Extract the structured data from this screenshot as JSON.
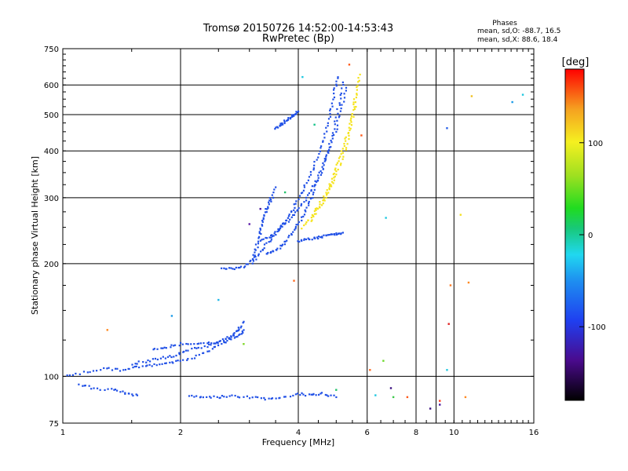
{
  "chart_data": {
    "type": "scatter",
    "title": "Tromsø 20150726 14:52:00-14:53:43",
    "subtitle": "RwPretec (Bp)",
    "xlabel": "Frequency [MHz]",
    "ylabel": "Stationary phase Virtual Height [km]",
    "x_scale": "log",
    "y_scale": "log",
    "xlim": [
      1,
      16
    ],
    "ylim": [
      75,
      750
    ],
    "x_ticks": [
      "1",
      "2",
      "4",
      "6",
      "8",
      "10",
      "16"
    ],
    "x_tick_values": [
      1,
      2,
      4,
      6,
      8,
      10,
      16
    ],
    "x_grid": [
      1,
      2,
      4,
      6,
      8,
      9,
      10,
      16
    ],
    "y_ticks": [
      "75",
      "100",
      "200",
      "300",
      "400",
      "500",
      "600",
      "750"
    ],
    "y_tick_values": [
      75,
      100,
      200,
      300,
      400,
      500,
      600,
      750
    ],
    "grid": true,
    "stats": {
      "heading": "Phases",
      "o_line": "mean, sd,O: -88.7, 16.5",
      "x_line": "mean, sd,X:  88.6, 18.4"
    },
    "colorbar": {
      "label": "[deg]",
      "range": [
        -180,
        180
      ],
      "ticks": [
        "100",
        "0",
        "-100"
      ],
      "tick_values": [
        100,
        0,
        -100
      ]
    },
    "series": [
      {
        "mode": "O",
        "phase_deg": -95,
        "color": "#1f4fe6",
        "traces": [
          {
            "x": [
              1.02,
              1.15,
              1.3,
              1.42,
              1.55,
              1.7,
              1.85,
              2.0,
              2.2,
              2.4,
              2.6,
              2.75,
              2.9
            ],
            "y": [
              100,
              103,
              105,
              104,
              106,
              107,
              108,
              110,
              113,
              118,
              124,
              130,
              140
            ]
          },
          {
            "x": [
              1.5,
              1.65,
              1.8,
              1.95,
              2.1,
              2.3,
              2.5,
              2.7,
              2.85
            ],
            "y": [
              108,
              110,
              112,
              114,
              118,
              120,
              124,
              128,
              135
            ]
          },
          {
            "x": [
              1.7,
              1.85,
              2.0,
              2.2,
              2.4,
              2.6,
              2.8,
              2.9
            ],
            "y": [
              118,
              120,
              122,
              122,
              123,
              124,
              128,
              133
            ]
          },
          {
            "x": [
              2.55,
              2.7,
              2.9,
              3.05,
              3.2,
              3.35,
              3.5,
              3.65,
              3.8,
              3.95,
              4.1,
              4.3,
              4.45,
              4.6,
              4.75,
              4.85,
              4.95,
              5.05
            ],
            "y": [
              195,
              194,
              196,
              205,
              215,
              228,
              240,
              255,
              270,
              290,
              315,
              345,
              380,
              420,
              470,
              520,
              580,
              630
            ]
          },
          {
            "x": [
              3.3,
              3.45,
              3.6,
              3.75,
              3.9,
              4.05,
              4.2,
              4.35,
              4.5,
              4.65,
              4.8,
              4.95,
              5.1,
              5.2
            ],
            "y": [
              212,
              215,
              222,
              232,
              245,
              262,
              282,
              305,
              335,
              370,
              410,
              470,
              540,
              610
            ]
          },
          {
            "x": [
              3.2,
              3.4,
              3.6,
              3.8,
              4.0,
              4.2,
              4.4,
              4.6,
              4.8,
              5.0,
              5.15,
              5.3
            ],
            "y": [
              230,
              238,
              250,
              262,
              280,
              300,
              325,
              360,
              400,
              460,
              520,
              590
            ]
          },
          {
            "x": [
              3.05,
              3.15,
              3.25,
              3.35,
              3.5
            ],
            "y": [
              200,
              230,
              260,
              290,
              320
            ]
          },
          {
            "x": [
              3.1,
              3.2,
              3.3,
              3.45
            ],
            "y": [
              205,
              240,
              275,
              300
            ]
          },
          {
            "x": [
              3.5,
              3.6,
              3.7,
              3.8,
              3.9,
              4.0
            ],
            "y": [
              460,
              470,
              480,
              490,
              500,
              510
            ]
          },
          {
            "x": [
              4.0,
              4.2,
              4.4,
              4.6,
              4.8,
              5.0,
              5.2
            ],
            "y": [
              230,
              232,
              234,
              236,
              238,
              240,
              242
            ]
          },
          {
            "x": [
              2.1,
              2.3,
              2.5,
              2.7,
              3.0,
              3.3,
              3.6,
              4.0,
              4.3,
              4.6,
              5.0
            ],
            "y": [
              89,
              88,
              88,
              89,
              88,
              87,
              88,
              90,
              89,
              90,
              88
            ]
          },
          {
            "x": [
              1.1,
              1.2,
              1.35,
              1.45,
              1.55
            ],
            "y": [
              95,
              93,
              92,
              90,
              89
            ]
          }
        ]
      },
      {
        "mode": "X",
        "phase_deg": 95,
        "color": "#f5e31a",
        "traces": [
          {
            "x": [
              4.1,
              4.3,
              4.5,
              4.7,
              4.85,
              5.0,
              5.15,
              5.3,
              5.45,
              5.55,
              5.65,
              5.75
            ],
            "y": [
              250,
              265,
              285,
              305,
              330,
              360,
              395,
              430,
              480,
              530,
              580,
              640
            ]
          },
          {
            "x": [
              4.3,
              4.5,
              4.7,
              4.9,
              5.1,
              5.3,
              5.45,
              5.6
            ],
            "y": [
              260,
              280,
              300,
              330,
              365,
              410,
              470,
              540
            ]
          }
        ]
      },
      {
        "mode": "scattered",
        "points": [
          {
            "x": 5.4,
            "y": 680,
            "phase_deg": 150,
            "color": "#ff5a1a"
          },
          {
            "x": 4.1,
            "y": 630,
            "phase_deg": -20,
            "color": "#20c8e0"
          },
          {
            "x": 4.4,
            "y": 470,
            "phase_deg": 10,
            "color": "#19c48a"
          },
          {
            "x": 3.7,
            "y": 310,
            "phase_deg": 20,
            "color": "#22c26a"
          },
          {
            "x": 6.7,
            "y": 265,
            "phase_deg": -20,
            "color": "#20c8e0"
          },
          {
            "x": 6.1,
            "y": 104,
            "phase_deg": 150,
            "color": "#ff6a22"
          },
          {
            "x": 6.6,
            "y": 110,
            "phase_deg": 60,
            "color": "#6cd92a"
          },
          {
            "x": 9.6,
            "y": 460,
            "phase_deg": -90,
            "color": "#2860e8"
          },
          {
            "x": 9.8,
            "y": 175,
            "phase_deg": 140,
            "color": "#ff7a22"
          },
          {
            "x": 9.7,
            "y": 138,
            "phase_deg": 170,
            "color": "#e02020"
          },
          {
            "x": 9.6,
            "y": 104,
            "phase_deg": -20,
            "color": "#20c8e0"
          },
          {
            "x": 10.4,
            "y": 270,
            "phase_deg": 110,
            "color": "#f3e020"
          },
          {
            "x": 10.9,
            "y": 178,
            "phase_deg": 140,
            "color": "#ff8a22"
          },
          {
            "x": 11.1,
            "y": 560,
            "phase_deg": 120,
            "color": "#f0c020"
          },
          {
            "x": 14.1,
            "y": 540,
            "phase_deg": -60,
            "color": "#1a9ae8"
          },
          {
            "x": 15.0,
            "y": 565,
            "phase_deg": -20,
            "color": "#20c8e0"
          },
          {
            "x": 1.3,
            "y": 133,
            "phase_deg": 140,
            "color": "#ff8a22"
          },
          {
            "x": 9.2,
            "y": 86,
            "phase_deg": 160,
            "color": "#ff3a1a"
          },
          {
            "x": 9.2,
            "y": 84,
            "phase_deg": -140,
            "color": "#4a18a0"
          },
          {
            "x": 8.7,
            "y": 82,
            "phase_deg": -150,
            "color": "#3a1080"
          },
          {
            "x": 10.7,
            "y": 88,
            "phase_deg": 140,
            "color": "#ff8a22"
          },
          {
            "x": 3.0,
            "y": 255,
            "phase_deg": -130,
            "color": "#5a1aa8"
          },
          {
            "x": 3.2,
            "y": 280,
            "phase_deg": -140,
            "color": "#4a18a0"
          },
          {
            "x": 3.9,
            "y": 180,
            "phase_deg": 150,
            "color": "#ff6a22"
          },
          {
            "x": 2.9,
            "y": 122,
            "phase_deg": 50,
            "color": "#80d82a"
          },
          {
            "x": 7.0,
            "y": 88,
            "phase_deg": 30,
            "color": "#3cc84a"
          },
          {
            "x": 6.9,
            "y": 93,
            "phase_deg": -150,
            "color": "#3a1080"
          },
          {
            "x": 6.3,
            "y": 89,
            "phase_deg": -20,
            "color": "#20c8e0"
          },
          {
            "x": 7.6,
            "y": 88,
            "phase_deg": 150,
            "color": "#ff5a1a"
          },
          {
            "x": 5.0,
            "y": 92,
            "phase_deg": 20,
            "color": "#22c26a"
          },
          {
            "x": 2.5,
            "y": 160,
            "phase_deg": -30,
            "color": "#20b8e8"
          },
          {
            "x": 1.9,
            "y": 145,
            "phase_deg": -60,
            "color": "#1a9ae8"
          },
          {
            "x": 5.8,
            "y": 440,
            "phase_deg": 150,
            "color": "#ff5a1a"
          }
        ]
      }
    ]
  }
}
